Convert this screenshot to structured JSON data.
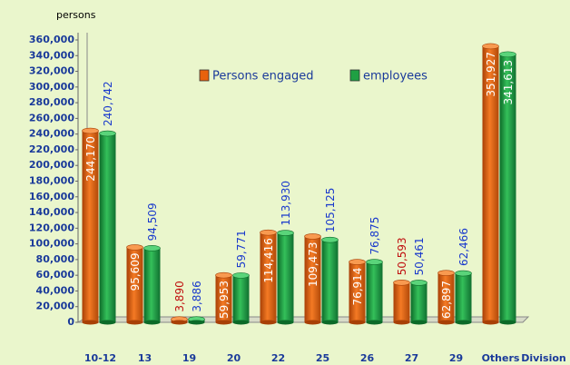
{
  "chart_data": {
    "type": "bar",
    "y_axis_label": "persons",
    "x_axis_label": "Division",
    "categories": [
      "10-12",
      "13",
      "19",
      "20",
      "22",
      "25",
      "26",
      "27",
      "29",
      "Others"
    ],
    "series": [
      {
        "name": "Persons engaged",
        "color": "#e8620c",
        "values": [
          244170,
          95609,
          3890,
          59953,
          114416,
          109473,
          76914,
          50593,
          62897,
          351927
        ],
        "value_labels": [
          "244,170",
          "95,609",
          "3,890",
          "59,953",
          "114,416",
          "109,473",
          "76,914",
          "50,593",
          "62,897",
          "351,927"
        ]
      },
      {
        "name": "employees",
        "color": "#1fa043",
        "values": [
          240742,
          94509,
          3886,
          59771,
          113930,
          105125,
          76875,
          50461,
          62466,
          341613
        ],
        "value_labels": [
          "240,742",
          "94,509",
          "3,886",
          "59,771",
          "113,930",
          "105,125",
          "76,875",
          "50,461",
          "62,466",
          "341,613"
        ]
      }
    ],
    "ylim": [
      0,
      360000
    ],
    "yticks": [
      0,
      {
        "value": 20000,
        "label": "20,000"
      },
      {
        "value": 40000,
        "label": "40,000"
      },
      {
        "value": 60000,
        "label": "60,000"
      },
      {
        "value": 80000,
        "label": "80,000"
      },
      {
        "value": 100000,
        "label": "100,000"
      },
      {
        "value": 120000,
        "label": "120,000"
      },
      {
        "value": 140000,
        "label": "140,000"
      },
      {
        "value": 160000,
        "label": "160,000"
      },
      {
        "value": 180000,
        "label": "180,000"
      },
      {
        "value": 200000,
        "label": "200,000"
      },
      {
        "value": 220000,
        "label": "220,000"
      },
      {
        "value": 240000,
        "label": "240,000"
      },
      {
        "value": 260000,
        "label": "260,000"
      },
      {
        "value": 280000,
        "label": "280,000"
      },
      {
        "value": 300000,
        "label": "300,000"
      },
      {
        "value": 320000,
        "label": "320,000"
      },
      {
        "value": 340000,
        "label": "340,000"
      },
      {
        "value": 360000,
        "label": "360,000"
      }
    ],
    "grid": false
  }
}
